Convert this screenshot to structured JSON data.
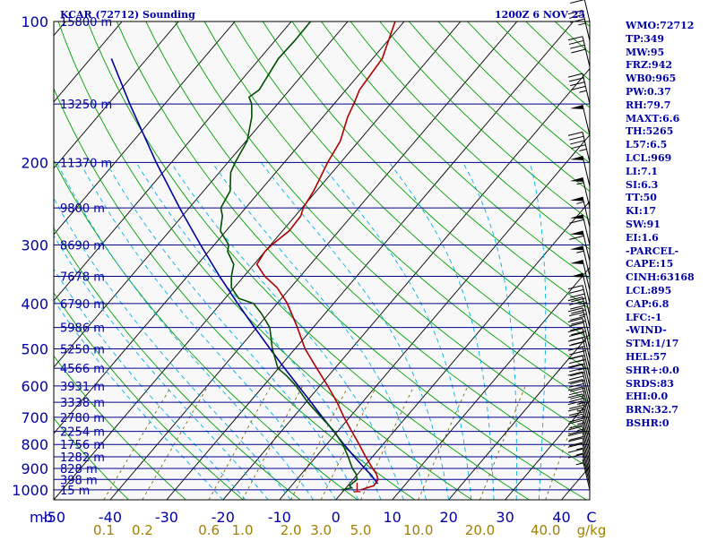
{
  "header": {
    "station": "KCAR (72712) Sounding",
    "valid_time": "1200Z  6 NOV 25"
  },
  "stats": [
    "WMO:72712",
    "TP:349",
    "MW:95",
    "FRZ:942",
    "WB0:965",
    "PW:0.37",
    "RH:79.7",
    "MAXT:6.6",
    "TH:5265",
    "L57:6.5",
    "LCL:969",
    "LI:7.1",
    "SI:6.3",
    "TT:50",
    "KI:17",
    "SW:91",
    "EI:1.6",
    "-PARCEL-",
    "CAPE:15",
    "CINH:63168",
    "LCL:895",
    "CAP:6.8",
    "LFC:-1",
    "-WIND-",
    "STM:1/17",
    "HEL:57",
    "SHR+:0.0",
    "SRDS:83",
    "EHI:0.0",
    "BRN:32.7",
    "BSHR:0"
  ],
  "colors": {
    "background": "#f8f8f8",
    "frame": "#000000",
    "isobar": "#00008c",
    "isotherm": "#000000",
    "dry_adiabat": "#00a000",
    "moist_adiabat": "#00b0e8",
    "mixing_ratio": "#806a00",
    "temperature": "#b00000",
    "dewpoint": "#005000",
    "parcel": "#0000a0",
    "wind_barb": "#000000",
    "label_blue": "#0000a8",
    "label_gold": "#a08000"
  },
  "chart_data": {
    "type": "skew-t log-p",
    "pressure_axis": {
      "unit_label": "mb",
      "ticks": [
        100,
        200,
        300,
        400,
        500,
        600,
        700,
        800,
        900,
        1000
      ],
      "range": [
        1050,
        100
      ],
      "scale": "log"
    },
    "temperature_axis": {
      "unit": "C",
      "ticks": [
        -50,
        -40,
        -30,
        -20,
        -10,
        0,
        10,
        20,
        30,
        40
      ],
      "tick_labels": [
        "-50",
        "-40",
        "-30",
        "-20",
        "-10",
        "0",
        "10",
        "20",
        "30",
        "40"
      ],
      "skewed": true
    },
    "mixing_ratio_axis": {
      "unit": "g/kg",
      "ticks": [
        0.1,
        0.2,
        0.6,
        1.0,
        2.0,
        3.0,
        5.0,
        10.0,
        20.0,
        40.0
      ],
      "tick_labels": [
        "0.1",
        "0.2",
        "0.6",
        "1.0",
        "2.0",
        "3.0",
        "5.0",
        "10.0",
        "20.0",
        "40.0"
      ]
    },
    "heights": [
      {
        "p": 1000,
        "label": "15 m"
      },
      {
        "p": 950,
        "label": "398 m"
      },
      {
        "p": 900,
        "label": "828 m"
      },
      {
        "p": 850,
        "label": "1282 m"
      },
      {
        "p": 800,
        "label": "1756 m"
      },
      {
        "p": 750,
        "label": "2254 m"
      },
      {
        "p": 700,
        "label": "2780 m"
      },
      {
        "p": 650,
        "label": "3338 m"
      },
      {
        "p": 600,
        "label": "3931 m"
      },
      {
        "p": 550,
        "label": "4566 m"
      },
      {
        "p": 500,
        "label": "5250 m"
      },
      {
        "p": 450,
        "label": "5986 m"
      },
      {
        "p": 400,
        "label": "6790 m"
      },
      {
        "p": 350,
        "label": "7678 m"
      },
      {
        "p": 300,
        "label": "8690 m"
      },
      {
        "p": 250,
        "label": "9800 m"
      },
      {
        "p": 200,
        "label": "11370 m"
      },
      {
        "p": 150,
        "label": "13250 m"
      },
      {
        "p": 100,
        "label": "15800 m"
      }
    ],
    "temperature_profile": [
      [
        1000,
        2.9
      ],
      [
        980,
        4.6
      ],
      [
        950,
        4.4
      ],
      [
        925,
        3.3
      ],
      [
        900,
        1.8
      ],
      [
        850,
        -1.2
      ],
      [
        800,
        -4.2
      ],
      [
        750,
        -7.5
      ],
      [
        700,
        -11.0
      ],
      [
        650,
        -14.5
      ],
      [
        600,
        -18.6
      ],
      [
        550,
        -23.2
      ],
      [
        500,
        -28.2
      ],
      [
        450,
        -32.8
      ],
      [
        400,
        -38.2
      ],
      [
        370,
        -42.4
      ],
      [
        350,
        -46.3
      ],
      [
        330,
        -49.5
      ],
      [
        310,
        -50.0
      ],
      [
        300,
        -49.8
      ],
      [
        280,
        -48.8
      ],
      [
        260,
        -49.0
      ],
      [
        250,
        -49.8
      ],
      [
        230,
        -50.5
      ],
      [
        200,
        -52.3
      ],
      [
        180,
        -53.3
      ],
      [
        160,
        -55.6
      ],
      [
        150,
        -56.5
      ],
      [
        140,
        -57.6
      ],
      [
        120,
        -58.3
      ],
      [
        100,
        -61.6
      ]
    ],
    "dewpoint_profile": [
      [
        1000,
        -0.5
      ],
      [
        990,
        1.0
      ],
      [
        980,
        0.3
      ],
      [
        950,
        0.7
      ],
      [
        925,
        -0.3
      ],
      [
        900,
        -1.8
      ],
      [
        850,
        -4.3
      ],
      [
        800,
        -7.1
      ],
      [
        750,
        -10.6
      ],
      [
        700,
        -15.0
      ],
      [
        650,
        -19.7
      ],
      [
        600,
        -24.2
      ],
      [
        570,
        -27.5
      ],
      [
        550,
        -30.1
      ],
      [
        500,
        -34.0
      ],
      [
        450,
        -37.7
      ],
      [
        420,
        -41.3
      ],
      [
        400,
        -44.2
      ],
      [
        390,
        -47.6
      ],
      [
        370,
        -50.5
      ],
      [
        350,
        -52.2
      ],
      [
        330,
        -53.6
      ],
      [
        310,
        -56.6
      ],
      [
        300,
        -57.4
      ],
      [
        280,
        -61.0
      ],
      [
        260,
        -62.9
      ],
      [
        250,
        -64.4
      ],
      [
        230,
        -65.3
      ],
      [
        210,
        -68.0
      ],
      [
        200,
        -68.7
      ],
      [
        180,
        -69.8
      ],
      [
        160,
        -72.6
      ],
      [
        150,
        -74.6
      ],
      [
        145,
        -76.1
      ],
      [
        140,
        -75.4
      ],
      [
        120,
        -76.7
      ],
      [
        110,
        -76.5
      ],
      [
        100,
        -76.6
      ]
    ],
    "parcel_profile": [
      [
        970,
        5.0
      ],
      [
        925,
        2.2
      ],
      [
        900,
        0.4
      ],
      [
        850,
        -3.2
      ],
      [
        800,
        -6.9
      ],
      [
        750,
        -10.7
      ],
      [
        700,
        -14.8
      ],
      [
        650,
        -19.1
      ],
      [
        600,
        -23.8
      ],
      [
        550,
        -28.9
      ],
      [
        500,
        -34.4
      ],
      [
        450,
        -40.4
      ],
      [
        400,
        -47.0
      ],
      [
        350,
        -54.3
      ],
      [
        300,
        -62.4
      ],
      [
        250,
        -71.7
      ],
      [
        200,
        -82.7
      ],
      [
        150,
        -96.2
      ],
      [
        120,
        -106.3
      ]
    ],
    "wind_barbs": [
      {
        "p": 1000,
        "speed_kt": 5
      },
      {
        "p": 975,
        "speed_kt": 10
      },
      {
        "p": 950,
        "speed_kt": 15
      },
      {
        "p": 925,
        "speed_kt": 15
      },
      {
        "p": 900,
        "speed_kt": 20
      },
      {
        "p": 875,
        "speed_kt": 20
      },
      {
        "p": 850,
        "speed_kt": 20
      },
      {
        "p": 825,
        "speed_kt": 25
      },
      {
        "p": 800,
        "speed_kt": 25
      },
      {
        "p": 775,
        "speed_kt": 25
      },
      {
        "p": 750,
        "speed_kt": 25
      },
      {
        "p": 725,
        "speed_kt": 25
      },
      {
        "p": 700,
        "speed_kt": 30
      },
      {
        "p": 675,
        "speed_kt": 30
      },
      {
        "p": 650,
        "speed_kt": 30
      },
      {
        "p": 625,
        "speed_kt": 30
      },
      {
        "p": 600,
        "speed_kt": 35
      },
      {
        "p": 575,
        "speed_kt": 35
      },
      {
        "p": 550,
        "speed_kt": 35
      },
      {
        "p": 525,
        "speed_kt": 40
      },
      {
        "p": 500,
        "speed_kt": 40
      },
      {
        "p": 475,
        "speed_kt": 40
      },
      {
        "p": 450,
        "speed_kt": 45
      },
      {
        "p": 425,
        "speed_kt": 45
      },
      {
        "p": 400,
        "speed_kt": 50
      },
      {
        "p": 375,
        "speed_kt": 50
      },
      {
        "p": 350,
        "speed_kt": 55
      },
      {
        "p": 325,
        "speed_kt": 60
      },
      {
        "p": 300,
        "speed_kt": 60
      },
      {
        "p": 275,
        "speed_kt": 55
      },
      {
        "p": 250,
        "speed_kt": 55
      },
      {
        "p": 225,
        "speed_kt": 50
      },
      {
        "p": 200,
        "speed_kt": 45
      },
      {
        "p": 175,
        "speed_kt": 50
      },
      {
        "p": 150,
        "speed_kt": 45
      },
      {
        "p": 125,
        "speed_kt": 40
      },
      {
        "p": 110,
        "speed_kt": 35
      },
      {
        "p": 100,
        "speed_kt": 30
      }
    ]
  }
}
